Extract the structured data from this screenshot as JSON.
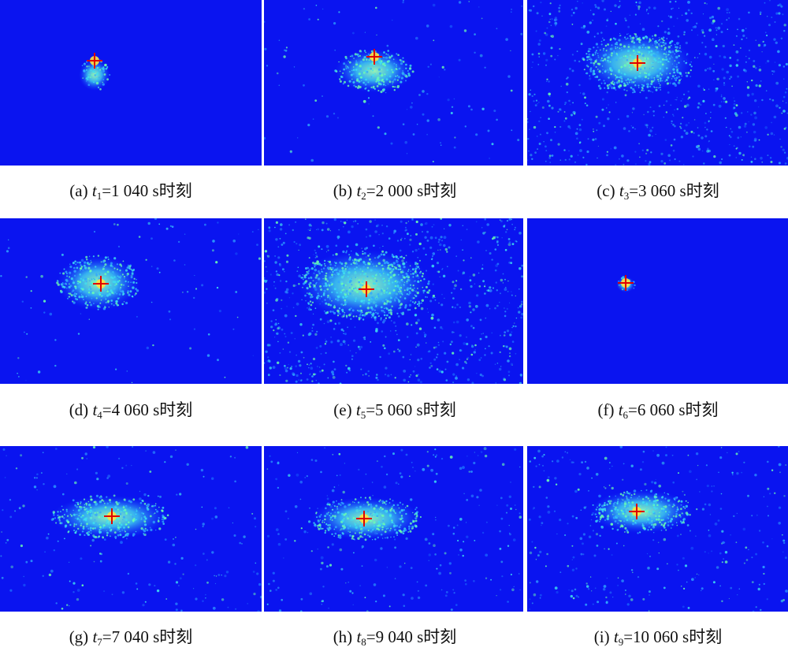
{
  "panels": [
    {
      "label": "(a)",
      "var": "t",
      "sub": "1",
      "rest": "=1 040 s时刻"
    },
    {
      "label": "(b)",
      "var": "t",
      "sub": "2",
      "rest": "=2 000 s时刻"
    },
    {
      "label": "(c)",
      "var": "t",
      "sub": "3",
      "rest": "=3 060 s时刻"
    },
    {
      "label": "(d)",
      "var": "t",
      "sub": "4",
      "rest": "=4 060 s时刻"
    },
    {
      "label": "(e)",
      "var": "t",
      "sub": "5",
      "rest": "=5 060 s时刻"
    },
    {
      "label": "(f)",
      "var": "t",
      "sub": "6",
      "rest": "=6 060 s时刻"
    },
    {
      "label": "(g)",
      "var": "t",
      "sub": "7",
      "rest": "=7 040 s时刻"
    },
    {
      "label": "(h)",
      "var": "t",
      "sub": "8",
      "rest": "=9 040 s时刻"
    },
    {
      "label": "(i)",
      "var": "t",
      "sub": "9",
      "rest": "=10 060 s时刻"
    }
  ]
}
